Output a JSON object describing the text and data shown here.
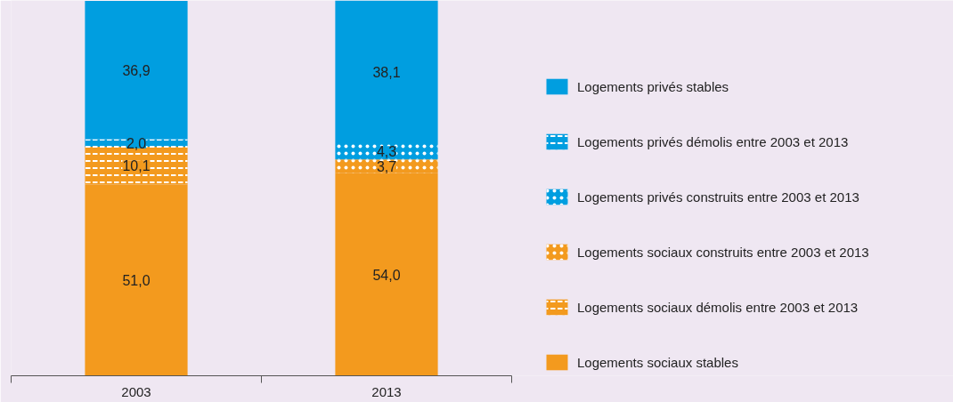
{
  "chart_data": {
    "type": "bar",
    "stacked": true,
    "categories": [
      "2003",
      "2013"
    ],
    "legend": "right",
    "grid": false,
    "series": [
      {
        "name": "Logements sociaux stables",
        "color": "#f39a1e",
        "values": [
          51.0,
          54.0
        ],
        "value_labels": [
          "51,0",
          "54,0"
        ]
      },
      {
        "name": "Logements sociaux démolis entre 2003 et 2013",
        "color": "#f39a1e",
        "line_style": "dashed",
        "values": [
          10.1,
          null
        ],
        "value_labels": [
          "10,1",
          null
        ]
      },
      {
        "name": "Logements sociaux construits entre 2003 et 2013",
        "color": "#f39a1e",
        "line_style": "dotted",
        "values": [
          null,
          3.7
        ],
        "value_labels": [
          null,
          "3,7"
        ]
      },
      {
        "name": "Logements privés construits entre 2003 et 2013",
        "color": "#009ee0",
        "line_style": "dotted",
        "values": [
          null,
          4.3
        ],
        "value_labels": [
          null,
          "4,3"
        ]
      },
      {
        "name": "Logements privés démolis entre 2003 et 2013",
        "color": "#009ee0",
        "line_style": "dashed",
        "values": [
          2.0,
          null
        ],
        "value_labels": [
          "2,0",
          null
        ]
      },
      {
        "name": "Logements privés stables",
        "color": "#009ee0",
        "values": [
          36.9,
          38.1
        ],
        "value_labels": [
          "36,9",
          "38,1"
        ]
      }
    ]
  }
}
